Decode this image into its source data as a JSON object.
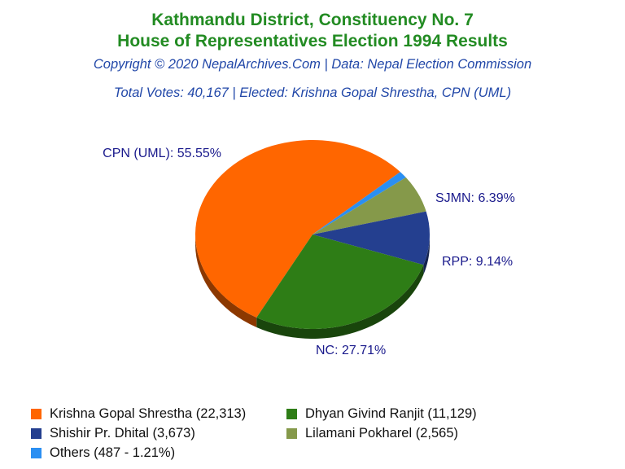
{
  "header": {
    "title_line1": "Kathmandu District, Constituency No. 7",
    "title_line2": "House of Representatives Election 1994 Results",
    "copyright": "Copyright © 2020 NepalArchives.Com | Data: Nepal Election Commission",
    "summary": "Total Votes: 40,167 | Elected: Krishna Gopal Shrestha, CPN (UML)"
  },
  "chart_data": {
    "type": "pie",
    "total_votes": 40167,
    "slices": [
      {
        "party": "CPN (UML)",
        "candidate": "Krishna Gopal Shrestha",
        "votes": 22313,
        "percent": 55.55,
        "color": "#ff6600",
        "label": "CPN (UML): 55.55%",
        "legend": "Krishna Gopal Shrestha (22,313)"
      },
      {
        "party": "NC",
        "candidate": "Dhyan Givind Ranjit",
        "votes": 11129,
        "percent": 27.71,
        "color": "#2e7d16",
        "label": "NC: 27.71%",
        "legend": "Dhyan Givind Ranjit (11,129)"
      },
      {
        "party": "RPP",
        "candidate": "Shishir Pr. Dhital",
        "votes": 3673,
        "percent": 9.14,
        "color": "#243f8f",
        "label": "RPP: 9.14%",
        "legend": "Shishir Pr. Dhital (3,673)"
      },
      {
        "party": "SJMN",
        "candidate": "Lilamani Pokharel",
        "votes": 2565,
        "percent": 6.39,
        "color": "#85994a",
        "label": "SJMN: 6.39%",
        "legend": "Lilamani Pokharel (2,565)"
      },
      {
        "party": "Others",
        "candidate": "Others",
        "votes": 487,
        "percent": 1.21,
        "color": "#2b8ff2",
        "label": "",
        "legend": "Others (487 - 1.21%)"
      }
    ],
    "legend_placement": "bottom"
  }
}
